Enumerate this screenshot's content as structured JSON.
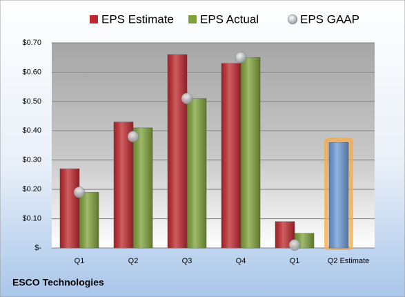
{
  "chart_data": {
    "type": "bar",
    "footer": "ESCO Technologies",
    "categories": [
      "Q1",
      "Q2",
      "Q3",
      "Q4",
      "Q1",
      "Q2 Estimate"
    ],
    "series": [
      {
        "name": "EPS Estimate",
        "color": "#c0282d",
        "values": [
          0.27,
          0.43,
          0.66,
          0.63,
          0.09,
          null
        ]
      },
      {
        "name": "EPS Actual",
        "color": "#7fa33a",
        "values": [
          0.19,
          0.41,
          0.51,
          0.65,
          0.05,
          null
        ]
      },
      {
        "name": "EPS GAAP",
        "color": "#b8bcc4",
        "marker": "circle",
        "values": [
          0.19,
          0.38,
          0.51,
          0.65,
          0.01,
          null
        ]
      }
    ],
    "highlight": {
      "color": "#6f9bd6",
      "values": [
        null,
        null,
        null,
        null,
        null,
        0.36
      ]
    },
    "ylim": [
      0,
      0.7
    ],
    "yticks": [
      {
        "value": 0,
        "label": "$-"
      },
      {
        "value": 0.1,
        "label": "$0.10"
      },
      {
        "value": 0.2,
        "label": "$0.20"
      },
      {
        "value": 0.3,
        "label": "$0.30"
      },
      {
        "value": 0.4,
        "label": "$0.40"
      },
      {
        "value": 0.5,
        "label": "$0.50"
      },
      {
        "value": 0.6,
        "label": "$0.60"
      },
      {
        "value": 0.7,
        "label": "$0.70"
      }
    ],
    "grid": true
  }
}
